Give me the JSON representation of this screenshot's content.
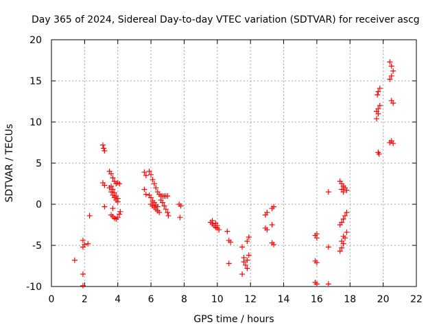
{
  "chart_data": {
    "type": "scatter",
    "title": "Day 365 of 2024, Sidereal Day-to-day VTEC variation (SDTVAR) for receiver ascg",
    "xlabel": "GPS time / hours",
    "ylabel": "SDTVAR / TECUs",
    "xlim": [
      0,
      22
    ],
    "ylim": [
      -10,
      20
    ],
    "xticks": [
      "0",
      "2",
      "4",
      "6",
      "8",
      "10",
      "12",
      "14",
      "16",
      "18",
      "20",
      "22"
    ],
    "yticks": [
      "-10",
      "-5",
      "0",
      "5",
      "10",
      "15",
      "20"
    ],
    "grid": true,
    "marker": "+",
    "color": "#ff0000",
    "series": [
      {
        "name": "SDTVAR",
        "points": [
          [
            1.4,
            -6.8
          ],
          [
            1.9,
            -9.9
          ],
          [
            1.9,
            -8.5
          ],
          [
            1.9,
            -5.2
          ],
          [
            2.0,
            -4.9
          ],
          [
            1.9,
            -4.4
          ],
          [
            2.2,
            -4.8
          ],
          [
            2.3,
            -1.4
          ],
          [
            3.1,
            7.2
          ],
          [
            3.15,
            6.8
          ],
          [
            3.2,
            6.5
          ],
          [
            3.1,
            2.6
          ],
          [
            3.2,
            2.3
          ],
          [
            3.2,
            -0.3
          ],
          [
            3.5,
            4.0
          ],
          [
            3.6,
            3.7
          ],
          [
            3.7,
            3.2
          ],
          [
            3.8,
            2.8
          ],
          [
            3.9,
            2.5
          ],
          [
            4.0,
            2.6
          ],
          [
            4.1,
            2.5
          ],
          [
            3.6,
            1.5
          ],
          [
            3.7,
            1.1
          ],
          [
            3.8,
            0.8
          ],
          [
            3.9,
            0.5
          ],
          [
            4.0,
            0.3
          ],
          [
            3.5,
            2.0
          ],
          [
            3.6,
            2.2
          ],
          [
            3.7,
            1.8
          ],
          [
            3.8,
            1.4
          ],
          [
            3.9,
            1.0
          ],
          [
            4.0,
            0.7
          ],
          [
            3.7,
            -0.5
          ],
          [
            3.6,
            -1.3
          ],
          [
            3.7,
            -1.5
          ],
          [
            3.8,
            -1.7
          ],
          [
            3.9,
            -1.8
          ],
          [
            4.0,
            -1.6
          ],
          [
            4.1,
            -1.2
          ],
          [
            4.15,
            -0.9
          ],
          [
            5.6,
            3.9
          ],
          [
            5.7,
            3.5
          ],
          [
            5.6,
            1.8
          ],
          [
            5.7,
            1.2
          ],
          [
            5.9,
            4.0
          ],
          [
            6.0,
            3.6
          ],
          [
            6.1,
            3.0
          ],
          [
            6.2,
            2.5
          ],
          [
            6.3,
            2.0
          ],
          [
            6.4,
            1.5
          ],
          [
            6.5,
            1.2
          ],
          [
            5.9,
            1.1
          ],
          [
            6.0,
            0.8
          ],
          [
            6.1,
            0.4
          ],
          [
            6.0,
            0.0
          ],
          [
            6.1,
            -0.2
          ],
          [
            6.2,
            -0.4
          ],
          [
            6.3,
            -0.6
          ],
          [
            6.4,
            -0.8
          ],
          [
            6.5,
            -1.0
          ],
          [
            6.6,
            1.0
          ],
          [
            6.7,
            1.0
          ],
          [
            6.8,
            1.0
          ],
          [
            6.9,
            1.0
          ],
          [
            7.0,
            1.0
          ],
          [
            6.6,
            0.5
          ],
          [
            6.7,
            0.2
          ],
          [
            6.8,
            -0.2
          ],
          [
            6.9,
            -0.6
          ],
          [
            7.0,
            -1.0
          ],
          [
            7.05,
            -1.4
          ],
          [
            6.2,
            0.2
          ],
          [
            6.3,
            -0.1
          ],
          [
            6.4,
            -0.3
          ],
          [
            7.7,
            0.0
          ],
          [
            7.8,
            -0.2
          ],
          [
            7.75,
            -1.6
          ],
          [
            9.6,
            -2.2
          ],
          [
            9.7,
            -2.4
          ],
          [
            9.8,
            -2.6
          ],
          [
            9.9,
            -2.8
          ],
          [
            10.0,
            -2.9
          ],
          [
            10.1,
            -3.1
          ],
          [
            9.7,
            -2.0
          ],
          [
            9.9,
            -2.3
          ],
          [
            10.0,
            -2.6
          ],
          [
            10.6,
            -3.3
          ],
          [
            10.7,
            -4.4
          ],
          [
            10.8,
            -4.6
          ],
          [
            10.7,
            -7.2
          ],
          [
            11.5,
            -5.2
          ],
          [
            11.6,
            -6.5
          ],
          [
            11.6,
            -7.0
          ],
          [
            11.5,
            -8.5
          ],
          [
            11.7,
            -7.4
          ],
          [
            11.8,
            -7.8
          ],
          [
            11.8,
            -6.8
          ],
          [
            11.9,
            -6.2
          ],
          [
            11.8,
            -4.5
          ],
          [
            11.9,
            -4.0
          ],
          [
            12.9,
            -1.3
          ],
          [
            13.0,
            -1.0
          ],
          [
            12.9,
            -2.9
          ],
          [
            13.0,
            -3.1
          ],
          [
            13.3,
            -4.7
          ],
          [
            13.4,
            -4.9
          ],
          [
            13.3,
            -2.5
          ],
          [
            13.3,
            -0.5
          ],
          [
            13.4,
            -0.3
          ],
          [
            15.9,
            -3.8
          ],
          [
            16.0,
            -4.1
          ],
          [
            16.0,
            -3.6
          ],
          [
            15.9,
            -6.9
          ],
          [
            16.0,
            -7.1
          ],
          [
            15.9,
            -9.5
          ],
          [
            16.0,
            -9.7
          ],
          [
            16.7,
            -9.7
          ],
          [
            16.7,
            1.5
          ],
          [
            16.7,
            -5.2
          ],
          [
            17.4,
            2.8
          ],
          [
            17.5,
            2.5
          ],
          [
            17.6,
            2.2
          ],
          [
            17.7,
            2.0
          ],
          [
            17.8,
            1.7
          ],
          [
            17.5,
            1.8
          ],
          [
            17.6,
            1.5
          ],
          [
            17.4,
            -2.5
          ],
          [
            17.5,
            -2.2
          ],
          [
            17.6,
            -1.8
          ],
          [
            17.7,
            -1.4
          ],
          [
            17.8,
            -1.0
          ],
          [
            17.4,
            -5.7
          ],
          [
            17.5,
            -5.3
          ],
          [
            17.6,
            -4.8
          ],
          [
            17.7,
            -4.1
          ],
          [
            17.8,
            -3.4
          ],
          [
            17.5,
            -4.5
          ],
          [
            17.6,
            -3.9
          ],
          [
            19.6,
            10.4
          ],
          [
            19.7,
            11.0
          ],
          [
            19.7,
            11.6
          ],
          [
            19.8,
            12.0
          ],
          [
            19.6,
            11.3
          ],
          [
            19.65,
            13.3
          ],
          [
            19.7,
            13.7
          ],
          [
            19.8,
            14.1
          ],
          [
            19.7,
            6.3
          ],
          [
            19.75,
            6.1
          ],
          [
            20.4,
            17.3
          ],
          [
            20.5,
            16.8
          ],
          [
            20.6,
            16.2
          ],
          [
            20.5,
            15.6
          ],
          [
            20.4,
            15.2
          ],
          [
            20.5,
            12.6
          ],
          [
            20.6,
            12.3
          ],
          [
            20.4,
            7.5
          ],
          [
            20.5,
            7.7
          ],
          [
            20.6,
            7.4
          ]
        ]
      }
    ]
  }
}
